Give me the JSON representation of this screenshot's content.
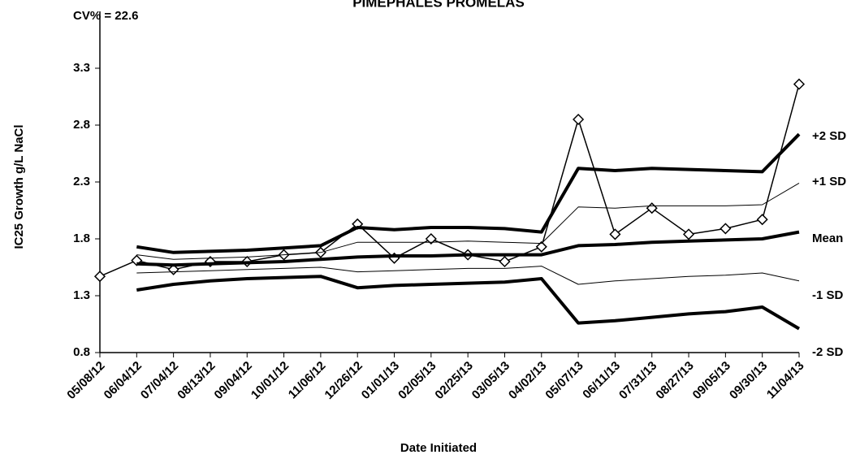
{
  "chart_data": {
    "type": "line",
    "title": "PIMEPHALES PROMELAS",
    "subtitle": "CV% = 22.6",
    "y_label": "IC25 Growth g/L NaCl",
    "x_label": "Date Initiated",
    "categories": [
      "05/08/12",
      "06/04/12",
      "07/04/12",
      "08/13/12",
      "09/04/12",
      "10/01/12",
      "11/06/12",
      "12/26/12",
      "01/01/13",
      "02/05/13",
      "02/25/13",
      "03/05/13",
      "04/02/13",
      "05/07/13",
      "06/11/13",
      "07/31/13",
      "08/27/13",
      "09/05/13",
      "09/30/13",
      "11/04/13"
    ],
    "ylim": [
      0.8,
      3.8
    ],
    "yticks": [
      0.8,
      1.3,
      1.8,
      2.3,
      2.8,
      3.3
    ],
    "series": [
      {
        "name": "IC25",
        "color": "#000000",
        "marker": "diamond",
        "line_width": 1.5,
        "values": [
          1.47,
          1.61,
          1.53,
          1.6,
          1.6,
          1.66,
          1.68,
          1.93,
          1.63,
          1.8,
          1.66,
          1.6,
          1.73,
          2.85,
          1.84,
          2.07,
          1.84,
          1.89,
          1.97,
          3.16
        ]
      },
      {
        "name": "+2 SD",
        "color": "#000000",
        "line_width": 4,
        "values": [
          null,
          1.73,
          1.68,
          1.69,
          1.7,
          1.72,
          1.74,
          1.9,
          1.88,
          1.9,
          1.9,
          1.89,
          1.86,
          2.42,
          2.4,
          2.42,
          2.41,
          2.4,
          2.39,
          2.72
        ]
      },
      {
        "name": "+1 SD",
        "color": "#000000",
        "line_width": 1,
        "values": [
          null,
          1.66,
          1.62,
          1.63,
          1.64,
          1.66,
          1.68,
          1.77,
          1.77,
          1.77,
          1.78,
          1.77,
          1.76,
          2.08,
          2.07,
          2.09,
          2.09,
          2.09,
          2.1,
          2.29
        ]
      },
      {
        "name": "Mean",
        "color": "#000000",
        "line_width": 4,
        "values": [
          null,
          1.58,
          1.57,
          1.58,
          1.59,
          1.6,
          1.62,
          1.64,
          1.65,
          1.65,
          1.66,
          1.66,
          1.66,
          1.74,
          1.75,
          1.77,
          1.78,
          1.79,
          1.8,
          1.86
        ]
      },
      {
        "name": "-1 SD",
        "color": "#000000",
        "line_width": 1,
        "values": [
          null,
          1.5,
          1.51,
          1.52,
          1.53,
          1.54,
          1.55,
          1.51,
          1.52,
          1.53,
          1.54,
          1.54,
          1.56,
          1.4,
          1.43,
          1.45,
          1.47,
          1.48,
          1.5,
          1.43
        ]
      },
      {
        "name": "-2 SD",
        "color": "#000000",
        "line_width": 4,
        "values": [
          null,
          1.35,
          1.4,
          1.43,
          1.45,
          1.46,
          1.47,
          1.37,
          1.39,
          1.4,
          1.41,
          1.42,
          1.45,
          1.06,
          1.08,
          1.11,
          1.14,
          1.16,
          1.2,
          1.01
        ]
      }
    ]
  }
}
